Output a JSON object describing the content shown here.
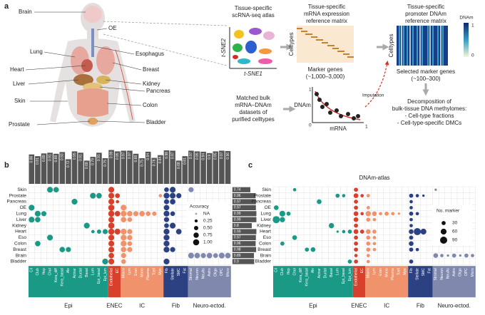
{
  "panel_a": {
    "label": "a",
    "organs": [
      "Brain",
      "OE",
      "Lung",
      "Esophagus",
      "Heart",
      "Breast",
      "Liver",
      "Kidney",
      "Pancreas",
      "Skin",
      "Colon",
      "Prostate",
      "Bladder"
    ],
    "atlas_title": [
      "Tissue-specific",
      "scRNA-seq atlas"
    ],
    "tsne_y": "t-SNE2",
    "tsne_x": "t-SNE1",
    "mrna_title": [
      "Tissue-specific",
      "mRNA expression",
      "reference matrix"
    ],
    "mrna_ylabel": "Celltypes",
    "mrna_xlabel": "Marker genes",
    "mrna_count": "(~1,000–3,000)",
    "dnam_title": [
      "Tissue-specific",
      "promoter DNAm",
      "reference matrix"
    ],
    "dnam_ylabel": "Celltypes",
    "dnam_legend": {
      "title": "DNAm",
      "max": 1,
      "min": 0
    },
    "dnam_xlabel": "Selected marker genes",
    "dnam_count": "(~100–300)",
    "bulk_text": [
      "Matched bulk",
      "mRNA–DNAm",
      "datasets of",
      "purified celltypes"
    ],
    "scatter_ylabel": "DNAm",
    "scatter_xlabel": "mRNA",
    "scatter_labels": {
      "y_max": 1,
      "origin": 0,
      "x_max": 1
    },
    "imputation": "Imputation",
    "decomp": [
      "Decomposition of",
      "bulk-tissue DNA methylomes:",
      "- Cell-type fractions",
      "- Cell-type-specific DMCs"
    ]
  },
  "panel_b": {
    "label": "b",
    "rows": [
      "Skin",
      "Prostate",
      "Pancreas",
      "OE",
      "Lung",
      "Liver",
      "Kidney",
      "Heart",
      "Eso",
      "Colon",
      "Breast",
      "Brain",
      "Bladder"
    ],
    "groups": [
      {
        "name": "Epi",
        "color": "#1a9a86",
        "columns": [
          "Cil",
          "Club",
          "Hep",
          "Chol",
          "Kera_diff",
          "Kera_basal",
          "Alv",
          "Acinar",
          "Ductal",
          "Basal",
          "Lum",
          "Epi_basal",
          "Epi_lum"
        ]
      },
      {
        "name": "ENEC",
        "color": "#d9402b",
        "columns": [
          "Endothelial",
          "EC"
        ]
      },
      {
        "name": "IC",
        "color": "#f0926b",
        "columns": [
          "Macro",
          "Lym",
          "Gran",
          "Mono",
          "Plasma",
          "Tcell",
          "Mye"
        ]
      },
      {
        "name": "Fib",
        "color": "#2c4182",
        "columns": [
          "Fib",
          "Stellate",
          "SMC",
          "Fat"
        ]
      },
      {
        "name": "Neuro-ectod.",
        "color": "#8089ad",
        "columns": [
          "Stromal",
          "Neuron",
          "NeuAs",
          "Astro",
          "Oligo",
          "OPC",
          "Micro"
        ]
      }
    ],
    "col_accuracy": [
      0.86,
      0.81,
      0.89,
      0.91,
      0.88,
      0.93,
      0.72,
      0.95,
      0.91,
      0.68,
      0.79,
      0.91,
      0.75,
      0.99,
      0.95,
      0.97,
      0.97,
      0.88,
      0.75,
      0.94,
      0.76,
      0.84,
      0.98,
      0.97,
      0.68,
      0.81,
      0.97,
      0.95,
      0.94,
      0.9,
      0.95,
      0.97,
      0.96
    ],
    "row_accuracy": [
      0.74,
      0.96,
      0.97,
      0.97,
      0.99,
      0.99,
      0.8,
      0.99,
      0.97,
      0.96,
      0.98,
      0.89,
      0.9
    ],
    "matrix": [
      [
        null,
        null,
        null,
        0.9,
        0.8,
        null,
        null,
        null,
        null,
        null,
        null,
        null,
        null,
        0.9,
        null,
        null,
        null,
        null,
        null,
        null,
        null,
        null,
        0.6,
        0.9,
        null,
        null,
        0.7,
        null,
        null,
        null,
        null,
        null,
        null
      ],
      [
        null,
        null,
        null,
        null,
        null,
        null,
        null,
        null,
        null,
        null,
        0.9,
        0.8,
        null,
        0.9,
        0.6,
        null,
        null,
        null,
        null,
        null,
        null,
        0.3,
        0.9,
        0.9,
        0.7,
        null,
        null,
        null,
        null,
        null,
        null,
        null,
        null
      ],
      [
        null,
        null,
        null,
        null,
        null,
        null,
        null,
        0.9,
        null,
        null,
        null,
        null,
        null,
        0.9,
        0.3,
        null,
        null,
        null,
        null,
        null,
        null,
        null,
        0.7,
        0.8,
        null,
        null,
        null,
        null,
        null,
        null,
        null,
        null,
        null
      ],
      [
        0.9,
        null,
        null,
        null,
        null,
        null,
        null,
        null,
        null,
        null,
        null,
        null,
        null,
        1.0,
        null,
        0.9,
        null,
        null,
        null,
        null,
        null,
        null,
        0.8,
        null,
        null,
        null,
        null,
        null,
        null,
        null,
        null,
        null,
        null
      ],
      [
        null,
        0.9,
        0.7,
        null,
        null,
        null,
        null,
        null,
        null,
        null,
        null,
        null,
        null,
        1.0,
        0.8,
        0.9,
        0.8,
        0.7,
        0.8,
        0.6,
        0.5,
        null,
        0.9,
        0.6,
        null,
        null,
        null,
        null,
        null,
        null,
        null,
        null,
        null
      ],
      [
        0.9,
        0.8,
        null,
        null,
        null,
        null,
        null,
        null,
        null,
        null,
        null,
        null,
        null,
        0.9,
        null,
        0.8,
        0.6,
        null,
        null,
        null,
        null,
        null,
        0.7,
        null,
        null,
        null,
        null,
        null,
        null,
        null,
        null,
        null,
        null
      ],
      [
        null,
        null,
        null,
        null,
        null,
        null,
        null,
        null,
        null,
        0.9,
        null,
        null,
        null,
        1.0,
        null,
        null,
        null,
        null,
        null,
        null,
        null,
        null,
        0.6,
        0.9,
        null,
        null,
        null,
        null,
        null,
        null,
        null,
        null,
        null
      ],
      [
        null,
        null,
        null,
        null,
        null,
        null,
        null,
        null,
        null,
        null,
        0.3,
        0.5,
        0.7,
        1.0,
        0.9,
        0.9,
        0.7,
        null,
        null,
        null,
        null,
        null,
        0.9,
        null,
        0.8,
        null,
        null,
        null,
        null,
        null,
        null,
        null,
        null
      ],
      [
        null,
        null,
        null,
        0.9,
        null,
        null,
        null,
        null,
        null,
        null,
        null,
        null,
        null,
        0.9,
        null,
        0.9,
        0.7,
        null,
        null,
        null,
        null,
        null,
        0.9,
        null,
        null,
        null,
        null,
        null,
        null,
        null,
        null,
        null,
        null
      ],
      [
        null,
        0.8,
        null,
        null,
        null,
        null,
        null,
        null,
        null,
        null,
        null,
        null,
        null,
        0.9,
        null,
        0.9,
        0.6,
        null,
        null,
        null,
        null,
        null,
        0.9,
        null,
        null,
        null,
        null,
        null,
        null,
        null,
        null,
        null,
        null
      ],
      [
        null,
        null,
        null,
        null,
        null,
        0.8,
        0.7,
        null,
        null,
        null,
        null,
        null,
        null,
        0.9,
        null,
        0.8,
        0.7,
        null,
        null,
        null,
        null,
        null,
        0.9,
        0.7,
        null,
        null,
        null,
        null,
        null,
        null,
        null,
        null,
        null
      ],
      [
        null,
        null,
        null,
        null,
        null,
        null,
        null,
        null,
        null,
        null,
        null,
        null,
        null,
        0.8,
        null,
        0.7,
        null,
        null,
        null,
        null,
        null,
        null,
        null,
        null,
        null,
        null,
        0.9,
        0.8,
        0.7,
        0.8,
        0.6,
        0.9,
        0.8
      ],
      [
        null,
        null,
        null,
        null,
        null,
        null,
        null,
        null,
        null,
        null,
        null,
        null,
        0.9,
        0.9,
        null,
        0.6,
        null,
        null,
        null,
        null,
        null,
        null,
        0.9,
        null,
        null,
        null,
        null,
        null,
        null,
        null,
        null,
        null,
        null
      ]
    ],
    "legend": {
      "title": "Accuracy",
      "na": "NA",
      "values": [
        0.25,
        {
          "value": 0.5,
          "label": "0.50"
        },
        0.75,
        {
          "value": 1.0,
          "label": "1.00"
        }
      ]
    }
  },
  "panel_c": {
    "label": "c",
    "title": "DNAm-atlas",
    "matrix": [
      [
        null,
        null,
        null,
        20,
        null,
        null,
        null,
        null,
        null,
        null,
        null,
        null,
        null,
        30,
        null,
        null,
        null,
        null,
        null,
        null,
        null,
        null,
        null,
        null,
        null,
        null,
        10,
        null,
        null,
        null,
        null,
        null,
        null
      ],
      [
        null,
        null,
        null,
        null,
        null,
        null,
        null,
        null,
        null,
        null,
        30,
        20,
        null,
        40,
        20,
        20,
        null,
        null,
        null,
        null,
        null,
        null,
        30,
        20,
        10,
        null,
        null,
        null,
        null,
        null,
        null,
        null,
        null
      ],
      [
        null,
        null,
        null,
        null,
        null,
        null,
        null,
        40,
        null,
        null,
        null,
        null,
        null,
        30,
        null,
        null,
        null,
        null,
        null,
        null,
        null,
        null,
        20,
        null,
        null,
        null,
        null,
        null,
        null,
        null,
        null,
        null,
        null
      ],
      [
        40,
        null,
        null,
        null,
        null,
        null,
        null,
        null,
        null,
        null,
        null,
        null,
        null,
        30,
        null,
        20,
        null,
        null,
        null,
        null,
        null,
        null,
        20,
        null,
        null,
        null,
        null,
        null,
        null,
        null,
        null,
        null,
        null
      ],
      [
        null,
        60,
        30,
        null,
        null,
        null,
        null,
        null,
        null,
        null,
        null,
        null,
        null,
        40,
        20,
        50,
        40,
        20,
        30,
        20,
        10,
        null,
        30,
        20,
        null,
        null,
        null,
        null,
        null,
        null,
        null,
        null,
        null
      ],
      [
        90,
        50,
        null,
        null,
        null,
        null,
        null,
        null,
        null,
        null,
        null,
        null,
        null,
        40,
        null,
        30,
        20,
        null,
        null,
        null,
        null,
        null,
        20,
        null,
        null,
        null,
        null,
        null,
        null,
        null,
        null,
        null,
        null
      ],
      [
        null,
        null,
        null,
        null,
        null,
        null,
        null,
        null,
        null,
        50,
        null,
        null,
        null,
        30,
        null,
        null,
        null,
        null,
        null,
        null,
        null,
        null,
        20,
        null,
        null,
        null,
        null,
        null,
        null,
        null,
        null,
        null,
        null
      ],
      [
        null,
        null,
        null,
        null,
        null,
        null,
        null,
        null,
        null,
        null,
        10,
        20,
        30,
        40,
        30,
        40,
        30,
        null,
        null,
        null,
        null,
        null,
        40,
        90,
        60,
        null,
        null,
        null,
        null,
        null,
        null,
        null,
        null
      ],
      [
        null,
        null,
        null,
        40,
        null,
        null,
        null,
        null,
        null,
        null,
        null,
        null,
        null,
        30,
        null,
        30,
        20,
        null,
        null,
        null,
        null,
        null,
        30,
        null,
        null,
        null,
        null,
        null,
        null,
        null,
        null,
        null,
        null
      ],
      [
        null,
        30,
        null,
        null,
        null,
        null,
        null,
        null,
        null,
        null,
        null,
        null,
        null,
        30,
        null,
        30,
        20,
        null,
        null,
        null,
        null,
        null,
        40,
        null,
        null,
        null,
        null,
        null,
        null,
        null,
        null,
        null,
        null
      ],
      [
        null,
        null,
        null,
        null,
        null,
        30,
        40,
        null,
        null,
        null,
        null,
        null,
        null,
        30,
        null,
        30,
        20,
        null,
        null,
        null,
        null,
        null,
        30,
        20,
        null,
        null,
        null,
        null,
        null,
        null,
        null,
        null,
        null
      ],
      [
        null,
        null,
        null,
        null,
        null,
        null,
        null,
        null,
        null,
        null,
        null,
        null,
        null,
        20,
        null,
        20,
        null,
        null,
        null,
        null,
        null,
        null,
        null,
        null,
        null,
        null,
        40,
        20,
        10,
        30,
        10,
        30,
        20
      ],
      [
        null,
        null,
        null,
        null,
        null,
        null,
        null,
        null,
        null,
        null,
        null,
        null,
        30,
        30,
        null,
        20,
        null,
        null,
        null,
        null,
        null,
        null,
        30,
        null,
        null,
        null,
        null,
        null,
        null,
        null,
        null,
        null,
        null
      ]
    ],
    "legend": {
      "title": "No. marker",
      "values": [
        30,
        60,
        90
      ]
    }
  }
}
